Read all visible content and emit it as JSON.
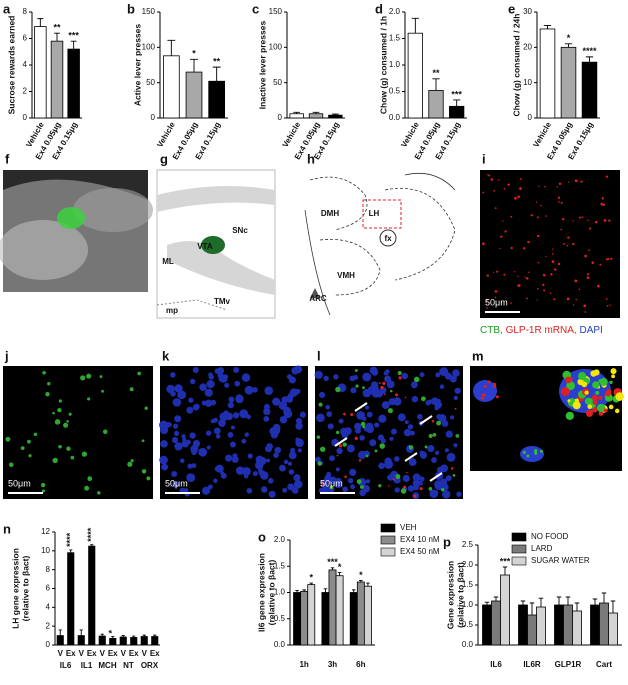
{
  "chart_data": [
    {
      "type": "bar",
      "label": "a",
      "ylabel": "Sucrose rewards earned",
      "categories": [
        "Vehicle",
        "Ex4 0.05μg",
        "Ex4 0.15μg"
      ],
      "values": [
        6.9,
        5.8,
        5.2
      ],
      "errors": [
        0.6,
        0.6,
        0.6
      ],
      "significance": [
        null,
        "**",
        "***"
      ],
      "colors": [
        "#ffffff",
        "#a8a8a8",
        "#000000"
      ],
      "ylim": [
        0,
        8
      ],
      "yticks": [
        0,
        2,
        4,
        6,
        8
      ]
    },
    {
      "type": "bar",
      "label": "b",
      "ylabel": "Active lever presses",
      "categories": [
        "Vehicle",
        "Ex4 0.05μg",
        "Ex4 0.15μg"
      ],
      "values": [
        88,
        65,
        52
      ],
      "errors": [
        22,
        18,
        20
      ],
      "significance": [
        null,
        "*",
        "**"
      ],
      "colors": [
        "#ffffff",
        "#a8a8a8",
        "#000000"
      ],
      "ylim": [
        0,
        150
      ],
      "yticks": [
        0,
        50,
        100,
        150
      ]
    },
    {
      "type": "bar",
      "label": "c",
      "ylabel": "Inactive lever presses",
      "categories": [
        "Vehicle",
        "Ex4 0.05μg",
        "Ex4 0.15μg"
      ],
      "values": [
        6,
        6,
        4
      ],
      "errors": [
        2,
        2,
        1.5
      ],
      "significance": [
        null,
        null,
        null
      ],
      "colors": [
        "#ffffff",
        "#a8a8a8",
        "#000000"
      ],
      "ylim": [
        0,
        150
      ],
      "yticks": [
        0,
        50,
        100,
        150
      ]
    },
    {
      "type": "bar",
      "label": "d",
      "ylabel": "Chow (g) consumed / 1h",
      "categories": [
        "Vehicle",
        "Ex4 0.05μg",
        "Ex4 0.15μg"
      ],
      "values": [
        1.6,
        0.52,
        0.22
      ],
      "errors": [
        0.28,
        0.22,
        0.12
      ],
      "significance": [
        null,
        "**",
        "***"
      ],
      "colors": [
        "#ffffff",
        "#a8a8a8",
        "#000000"
      ],
      "ylim": [
        0,
        2
      ],
      "yticks": [
        {
          "value": 0,
          "label": "0.0"
        },
        {
          "value": 0.5,
          "label": "0.5"
        },
        {
          "value": 1,
          "label": "1.0"
        },
        {
          "value": 1.5,
          "label": "1.5"
        },
        {
          "value": 2,
          "label": "2.0"
        }
      ]
    },
    {
      "type": "bar",
      "label": "e",
      "ylabel": "Chow (g) consumed / 24h",
      "categories": [
        "Vehicle",
        "Ex4 0.05μg",
        "Ex4 0.15μg"
      ],
      "values": [
        25.2,
        20,
        15.8
      ],
      "errors": [
        1,
        1,
        1.5
      ],
      "significance": [
        null,
        "*",
        "****"
      ],
      "colors": [
        "#ffffff",
        "#a8a8a8",
        "#000000"
      ],
      "ylim": [
        0,
        30
      ],
      "yticks": [
        0,
        10,
        20,
        30
      ]
    },
    {
      "type": "bar",
      "label": "n",
      "ylabel": [
        "LH gene expression",
        "(relative to βact)"
      ],
      "categories": [
        "V",
        "Ex",
        "V",
        "Ex",
        "V",
        "Ex",
        "V",
        "Ex",
        "V",
        "Ex"
      ],
      "groups": [
        "IL6",
        "IL1",
        "MCH",
        "NT",
        "ORX"
      ],
      "values": [
        1.0,
        9.8,
        1.0,
        10.5,
        0.95,
        0.7,
        0.85,
        0.8,
        0.9,
        0.9
      ],
      "errors": [
        0.6,
        0.3,
        0.6,
        0.15,
        0.2,
        0.2,
        0.15,
        0.15,
        0.15,
        0.15
      ],
      "significance": [
        null,
        "****",
        null,
        "****",
        null,
        "*",
        null,
        null,
        null,
        null
      ],
      "color": "#000000",
      "ylim": [
        0,
        12
      ],
      "yticks": [
        0,
        2,
        4,
        6,
        8,
        10,
        12
      ]
    },
    {
      "type": "bar",
      "label": "o",
      "ylabel": [
        "Il6 gene expression",
        "(relative to βact)"
      ],
      "categories": [
        "1h",
        "3h",
        "6h"
      ],
      "legend": "upper right",
      "series": [
        {
          "name": "VEH",
          "color": "#000000",
          "values": [
            1.0,
            1.0,
            1.0
          ],
          "errors": [
            0.04,
            0.07,
            0.05
          ],
          "significance": [
            null,
            null,
            null
          ]
        },
        {
          "name": "EX4 10 nM",
          "color": "#8c8c8c",
          "values": [
            1.02,
            1.43,
            1.2
          ],
          "errors": [
            0.03,
            0.04,
            0.03
          ],
          "significance": [
            null,
            "***",
            "*"
          ]
        },
        {
          "name": "EX4 50 nM",
          "color": "#d4d4d4",
          "values": [
            1.15,
            1.32,
            1.12
          ],
          "errors": [
            0.03,
            0.06,
            0.06
          ],
          "significance": [
            "*",
            "*",
            null
          ]
        }
      ],
      "ylim": [
        0,
        2
      ],
      "yticks": [
        {
          "value": 0,
          "label": "0.0"
        },
        {
          "value": 0.5,
          "label": "0.5"
        },
        {
          "value": 1,
          "label": "1.0"
        },
        {
          "value": 1.5,
          "label": "1.5"
        },
        {
          "value": 2,
          "label": "2.0"
        }
      ]
    },
    {
      "type": "bar",
      "label": "p",
      "ylabel": [
        "Gene expression",
        "(relative to βact)"
      ],
      "categories": [
        "IL6",
        "IL6R",
        "GLP1R",
        "Cart"
      ],
      "legend": "upper right",
      "series": [
        {
          "name": "NO FOOD",
          "color": "#000000",
          "values": [
            1.0,
            1.0,
            1.0,
            1.0
          ],
          "errors": [
            0.07,
            0.1,
            0.2,
            0.15
          ],
          "significance": [
            null,
            null,
            null,
            null
          ]
        },
        {
          "name": "LARD",
          "color": "#7a7a7a",
          "values": [
            1.1,
            0.75,
            1.0,
            1.05
          ],
          "errors": [
            0.1,
            0.3,
            0.2,
            0.25
          ],
          "significance": [
            null,
            null,
            null,
            null
          ]
        },
        {
          "name": "SUGAR WATER",
          "color": "#d4d4d4",
          "values": [
            1.75,
            0.95,
            0.85,
            0.8
          ],
          "errors": [
            0.2,
            0.22,
            0.2,
            0.3
          ],
          "significance": [
            "***",
            null,
            null,
            null
          ]
        }
      ],
      "ylim": [
        0,
        2.5
      ],
      "yticks": [
        {
          "value": 0,
          "label": "0.0"
        },
        {
          "value": 0.5,
          "label": "0.5"
        },
        {
          "value": 1,
          "label": "1.0"
        },
        {
          "value": 1.5,
          "label": "1.5"
        },
        {
          "value": 2,
          "label": "2.0"
        },
        {
          "value": 2.5,
          "label": "2.5"
        }
      ]
    }
  ],
  "images": [
    {
      "label": "f"
    },
    {
      "label": "g",
      "texts": [
        "VTA",
        "SNc",
        "ML",
        "TMv",
        "mp"
      ]
    },
    {
      "label": "h",
      "texts": [
        "DMH",
        "LH",
        "fx",
        "VMH",
        "ARC"
      ]
    },
    {
      "label": "i",
      "scale_bar": "50μm"
    },
    {
      "label": "j",
      "scale_bar": "50μm"
    },
    {
      "label": "k",
      "scale_bar": "50μm"
    },
    {
      "label": "l",
      "scale_bar": "50μm"
    },
    {
      "label": "m"
    }
  ],
  "caption": [
    {
      "text": "CTB,",
      "color": "#1a9a1a"
    },
    {
      "text": "GLP-1R mRNA,",
      "color": "#e02020"
    },
    {
      "text": "DAPI",
      "color": "#1f3fbf"
    }
  ]
}
